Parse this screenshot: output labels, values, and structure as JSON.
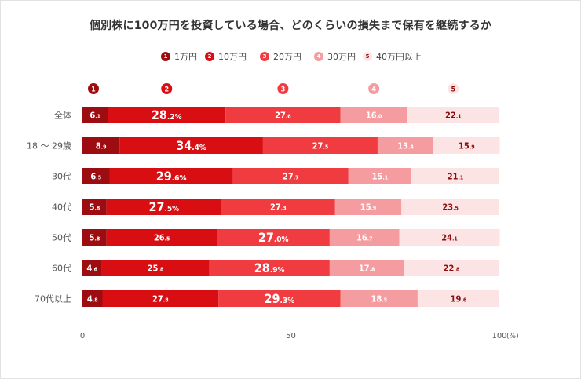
{
  "title": "個別株に100万円を投資している場合、どのくらいの損失まで保有を継続するか",
  "colors": {
    "s1": "#9c0c10",
    "s2": "#d80e12",
    "s3": "#f03c40",
    "s4": "#f49ca0",
    "s5": "#fde4e4",
    "label_light": "#ffffff",
    "label_dark": "#8a0e10",
    "axis_text": "#555555"
  },
  "chart_data": {
    "type": "bar",
    "orientation": "horizontal",
    "stacked": true,
    "categories": [
      "全体",
      "18 〜 29歳",
      "30代",
      "40代",
      "50代",
      "60代",
      "70代以上"
    ],
    "series": [
      {
        "name": "1万円",
        "marker": "1",
        "values": [
          6.1,
          8.9,
          6.5,
          5.8,
          5.8,
          4.6,
          4.8
        ]
      },
      {
        "name": "10万円",
        "marker": "2",
        "values": [
          28.2,
          34.4,
          29.6,
          27.5,
          26.5,
          25.8,
          27.8
        ]
      },
      {
        "name": "20万円",
        "marker": "3",
        "values": [
          27.6,
          27.5,
          27.7,
          27.3,
          27.0,
          28.9,
          29.3
        ]
      },
      {
        "name": "30万円",
        "marker": "4",
        "values": [
          16.0,
          13.4,
          15.1,
          15.9,
          16.7,
          17.8,
          18.5
        ]
      },
      {
        "name": "40万円以上",
        "marker": "5",
        "values": [
          22.1,
          15.9,
          21.1,
          23.5,
          24.1,
          22.8,
          19.6
        ]
      }
    ],
    "largest_marked": [
      1,
      1,
      1,
      1,
      2,
      2,
      2
    ],
    "percent_suffix": "%",
    "xlim": [
      0,
      100
    ],
    "x_ticks": [
      "0",
      "50",
      "100"
    ],
    "x_unit": "(%)",
    "legend_position": "top",
    "grid": false
  }
}
